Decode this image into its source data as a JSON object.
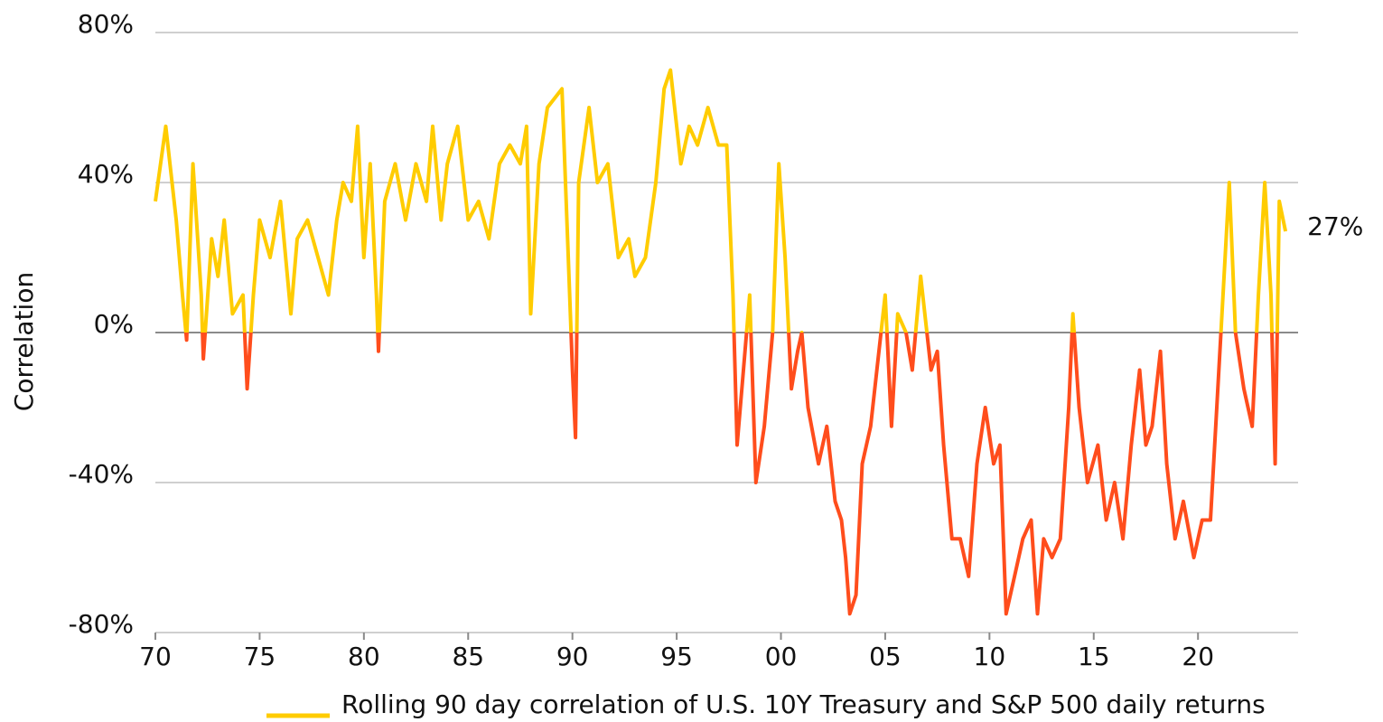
{
  "chart_data": {
    "type": "line",
    "y_label": "Correlation",
    "xlim": [
      1970,
      2024.8
    ],
    "ylim": [
      -80,
      80
    ],
    "xticks": [
      {
        "value": 1970,
        "label": "70"
      },
      {
        "value": 1975,
        "label": "75"
      },
      {
        "value": 1980,
        "label": "80"
      },
      {
        "value": 1985,
        "label": "85"
      },
      {
        "value": 1990,
        "label": "90"
      },
      {
        "value": 1995,
        "label": "95"
      },
      {
        "value": 2000,
        "label": "00"
      },
      {
        "value": 2005,
        "label": "05"
      },
      {
        "value": 2010,
        "label": "10"
      },
      {
        "value": 2015,
        "label": "15"
      },
      {
        "value": 2020,
        "label": "20"
      }
    ],
    "yticks": [
      {
        "value": 80,
        "label": "80%"
      },
      {
        "value": 40,
        "label": "40%"
      },
      {
        "value": 0,
        "label": "0%"
      },
      {
        "value": -40,
        "label": "-40%"
      },
      {
        "value": -80,
        "label": "-80%"
      }
    ],
    "grid": true,
    "negative_color": "#FF4D1C",
    "x": [
      1970.0,
      1970.5,
      1971.0,
      1971.3,
      1971.5,
      1971.8,
      1972.2,
      1972.3,
      1972.7,
      1973.0,
      1973.3,
      1973.7,
      1974.2,
      1974.4,
      1974.7,
      1975.0,
      1975.5,
      1976.0,
      1976.5,
      1976.8,
      1977.3,
      1977.8,
      1978.3,
      1978.7,
      1979.0,
      1979.4,
      1979.7,
      1980.0,
      1980.3,
      1980.6,
      1980.7,
      1981.0,
      1981.5,
      1982.0,
      1982.5,
      1983.0,
      1983.3,
      1983.7,
      1984.0,
      1984.5,
      1985.0,
      1985.5,
      1986.0,
      1986.5,
      1987.0,
      1987.5,
      1987.8,
      1988.0,
      1988.4,
      1988.8,
      1989.5,
      1989.8,
      1990.0,
      1990.15,
      1990.3,
      1990.8,
      1991.2,
      1991.7,
      1992.2,
      1992.7,
      1993.0,
      1993.5,
      1994.0,
      1994.4,
      1994.7,
      1995.2,
      1995.6,
      1996.0,
      1996.5,
      1997.0,
      1997.4,
      1997.7,
      1997.9,
      1998.2,
      1998.5,
      1998.8,
      1999.2,
      1999.6,
      1999.9,
      2000.2,
      2000.5,
      2000.8,
      2001.0,
      2001.3,
      2001.8,
      2002.2,
      2002.6,
      2002.9,
      2003.1,
      2003.3,
      2003.6,
      2003.9,
      2004.3,
      2004.6,
      2005.0,
      2005.3,
      2005.6,
      2006.0,
      2006.3,
      2006.7,
      2007.2,
      2007.5,
      2007.8,
      2008.2,
      2008.6,
      2009.0,
      2009.4,
      2009.8,
      2010.2,
      2010.5,
      2010.8,
      2011.2,
      2011.6,
      2012.0,
      2012.3,
      2012.6,
      2013.0,
      2013.4,
      2013.8,
      2014.0,
      2014.3,
      2014.7,
      2015.2,
      2015.6,
      2016.0,
      2016.4,
      2016.8,
      2017.2,
      2017.5,
      2017.8,
      2018.2,
      2018.5,
      2018.9,
      2019.3,
      2019.8,
      2020.2,
      2020.6,
      2020.9,
      2021.2,
      2021.5,
      2021.8,
      2022.2,
      2022.6,
      2022.9,
      2023.2,
      2023.5,
      2023.7,
      2023.9,
      2024.2
    ],
    "series": [
      {
        "name": "Rolling 90 day correlation of U.S. 10Y Treasury and S&P 500 daily returns",
        "color": "#FFCC00",
        "values": [
          35,
          55,
          30,
          10,
          -2,
          45,
          10,
          -7,
          25,
          15,
          30,
          5,
          10,
          -15,
          10,
          30,
          20,
          35,
          5,
          25,
          30,
          20,
          10,
          30,
          40,
          35,
          55,
          20,
          45,
          10,
          -5,
          35,
          45,
          30,
          45,
          35,
          55,
          30,
          45,
          55,
          30,
          35,
          25,
          45,
          50,
          45,
          55,
          5,
          45,
          60,
          65,
          20,
          -10,
          -28,
          40,
          60,
          40,
          45,
          20,
          25,
          15,
          20,
          40,
          65,
          70,
          45,
          55,
          50,
          60,
          50,
          50,
          10,
          -30,
          -10,
          10,
          -40,
          -25,
          0,
          45,
          20,
          -15,
          -5,
          0,
          -20,
          -35,
          -25,
          -45,
          -50,
          -60,
          -75,
          -70,
          -35,
          -25,
          -10,
          10,
          -25,
          5,
          0,
          -10,
          15,
          -10,
          -5,
          -30,
          -55,
          -55,
          -65,
          -35,
          -20,
          -35,
          -30,
          -75,
          -65,
          -55,
          -50,
          -75,
          -55,
          -60,
          -55,
          -20,
          5,
          -20,
          -40,
          -30,
          -50,
          -40,
          -55,
          -30,
          -10,
          -30,
          -25,
          -5,
          -35,
          -55,
          -45,
          -60,
          -50,
          -50,
          -20,
          10,
          40,
          0,
          -15,
          -25,
          10,
          40,
          10,
          -35,
          35,
          27
        ]
      }
    ],
    "annotations": [
      {
        "text": "27%",
        "x": 2024.2,
        "y": 27
      }
    ]
  }
}
